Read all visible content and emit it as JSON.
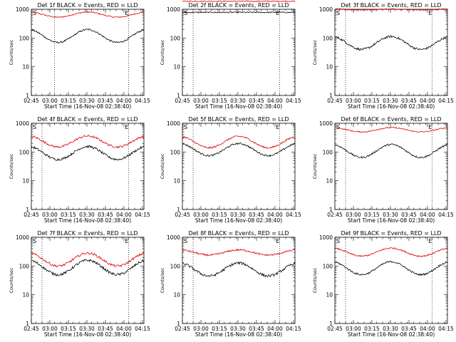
{
  "colors": {
    "events": "#000000",
    "lld": "#e00000"
  },
  "shared": {
    "ylabel": "Counts/sec",
    "xlabel": "Start Time (16-Nov-08 02:38:40)",
    "x_tick_labels": [
      "02:45",
      "03:00",
      "03:15",
      "03:30",
      "03:45",
      "04:00",
      "04:15"
    ],
    "y_tick_labels": [
      "1",
      "10",
      "100",
      "1000"
    ],
    "marker_left": "S",
    "marker_right": "E"
  },
  "chart_data": [
    {
      "type": "line",
      "title": "Det 1f BLACK = Events, RED = LLD",
      "y_scale": "log",
      "ylim": [
        1,
        1000
      ],
      "xlim_min": [
        6.33,
        97.5
      ],
      "markers_min": [
        25,
        85
      ],
      "series": [
        {
          "name": "Events",
          "color": "black",
          "base": 70,
          "amp": 0.45,
          "noise": 0.03
        },
        {
          "name": "LLD",
          "color": "red",
          "base": 530,
          "amp": 0.18,
          "noise": 0.02
        }
      ]
    },
    {
      "type": "line",
      "title": "Det 2f BLACK = Events, RED = LLD",
      "y_scale": "log",
      "ylim": [
        1,
        1000
      ],
      "xlim_min": [
        6.33,
        97.5
      ],
      "markers_min": [
        15,
        85
      ],
      "series": [
        {
          "name": "Events",
          "color": "black",
          "base": 780,
          "amp": 0.0,
          "noise": 0.02
        },
        {
          "name": "LLD",
          "color": "red",
          "base": 1900,
          "amp": 0.0,
          "noise": 0.015
        }
      ]
    },
    {
      "type": "line",
      "title": "Det 3f BLACK = Events, RED = LLD",
      "y_scale": "log",
      "ylim": [
        1,
        1000
      ],
      "xlim_min": [
        6.33,
        97.5
      ],
      "markers_min": [
        15,
        85
      ],
      "series": [
        {
          "name": "Events",
          "color": "black",
          "base": 40,
          "amp": 0.45,
          "noise": 0.04
        },
        {
          "name": "LLD",
          "color": "red",
          "base": 950,
          "amp": 0.03,
          "noise": 0.02
        }
      ]
    },
    {
      "type": "line",
      "title": "Det 4f BLACK = Events, RED = LLD",
      "y_scale": "log",
      "ylim": [
        1,
        1000
      ],
      "xlim_min": [
        6.33,
        97.5
      ],
      "markers_min": [
        15,
        85
      ],
      "series": [
        {
          "name": "Events",
          "color": "black",
          "base": 55,
          "amp": 0.45,
          "noise": 0.04
        },
        {
          "name": "LLD",
          "color": "red",
          "base": 150,
          "amp": 0.38,
          "noise": 0.035
        }
      ]
    },
    {
      "type": "line",
      "title": "Det 5f BLACK = Events, RED = LLD",
      "y_scale": "log",
      "ylim": [
        1,
        1000
      ],
      "xlim_min": [
        6.33,
        97.5
      ],
      "markers_min": [
        15,
        85
      ],
      "series": [
        {
          "name": "Events",
          "color": "black",
          "base": 75,
          "amp": 0.42,
          "noise": 0.03
        },
        {
          "name": "LLD",
          "color": "red",
          "base": 140,
          "amp": 0.4,
          "noise": 0.03
        }
      ]
    },
    {
      "type": "line",
      "title": "Det 6f BLACK = Events, RED = LLD",
      "y_scale": "log",
      "ylim": [
        1,
        1000
      ],
      "xlim_min": [
        6.33,
        97.5
      ],
      "markers_min": [
        15,
        85
      ],
      "series": [
        {
          "name": "Events",
          "color": "black",
          "base": 65,
          "amp": 0.45,
          "noise": 0.03
        },
        {
          "name": "LLD",
          "color": "red",
          "base": 500,
          "amp": 0.15,
          "noise": 0.02
        }
      ]
    },
    {
      "type": "line",
      "title": "Det 7f BLACK = Events, RED = LLD",
      "y_scale": "log",
      "ylim": [
        1,
        1000
      ],
      "xlim_min": [
        6.33,
        97.5
      ],
      "markers_min": [
        15,
        85
      ],
      "series": [
        {
          "name": "Events",
          "color": "black",
          "base": 50,
          "amp": 0.5,
          "noise": 0.045
        },
        {
          "name": "LLD",
          "color": "red",
          "base": 100,
          "amp": 0.45,
          "noise": 0.04
        }
      ]
    },
    {
      "type": "line",
      "title": "Det 8f BLACK = Events, RED = LLD",
      "y_scale": "log",
      "ylim": [
        1,
        1000
      ],
      "xlim_min": [
        6.33,
        97.5
      ],
      "markers_min": [
        15,
        85
      ],
      "series": [
        {
          "name": "Events",
          "color": "black",
          "base": 45,
          "amp": 0.45,
          "noise": 0.045
        },
        {
          "name": "LLD",
          "color": "red",
          "base": 240,
          "amp": 0.18,
          "noise": 0.03
        }
      ]
    },
    {
      "type": "line",
      "title": "Det 9f BLACK = Events, RED = LLD",
      "y_scale": "log",
      "ylim": [
        1,
        1000
      ],
      "xlim_min": [
        6.33,
        97.5
      ],
      "markers_min": [
        15,
        85
      ],
      "series": [
        {
          "name": "Events",
          "color": "black",
          "base": 50,
          "amp": 0.45,
          "noise": 0.03
        },
        {
          "name": "LLD",
          "color": "red",
          "base": 220,
          "amp": 0.28,
          "noise": 0.025
        }
      ]
    }
  ]
}
